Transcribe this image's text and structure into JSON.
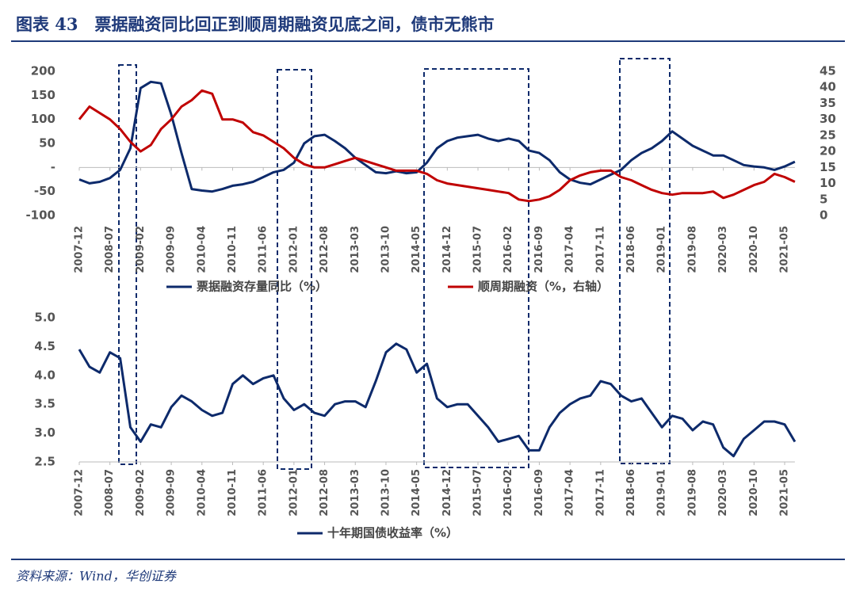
{
  "title": "图表 43　票据融资同比回正到顺周期融资见底之间，债市无熊市",
  "source": "资料来源：Wind，华创证券",
  "chart_data": [
    {
      "type": "line",
      "categories": [
        "2007-12",
        null,
        null,
        "2008-07",
        null,
        null,
        "2009-02",
        null,
        null,
        "2009-09",
        null,
        null,
        "2010-04",
        null,
        null,
        "2010-11",
        null,
        null,
        "2011-06",
        null,
        null,
        "2012-01",
        null,
        null,
        "2012-08",
        null,
        null,
        "2013-03",
        null,
        null,
        "2013-10",
        null,
        null,
        "2014-05",
        null,
        null,
        "2014-12",
        null,
        null,
        "2015-07",
        null,
        null,
        "2016-02",
        null,
        null,
        "2016-09",
        null,
        null,
        "2017-04",
        null,
        null,
        "2017-11",
        null,
        null,
        "2018-06",
        null,
        null,
        "2019-01",
        null,
        null,
        "2019-08",
        null,
        null,
        "2020-03",
        null,
        null,
        "2020-10",
        null,
        null,
        "2021-05",
        null
      ],
      "ylim": [
        -100,
        200
      ],
      "yticks": [
        200,
        150,
        100,
        50,
        {
          "value": 0,
          "label": "-"
        },
        -50,
        -100
      ],
      "y2lim": [
        0,
        45
      ],
      "y2ticks": [
        45,
        40,
        35,
        30,
        25,
        20,
        15,
        10,
        5,
        0
      ],
      "series": [
        {
          "name": "票据融资存量同比（%）",
          "color": "#0d2a6b",
          "values": [
            -25,
            -33,
            -30,
            -22,
            -5,
            40,
            165,
            178,
            175,
            110,
            30,
            -45,
            -48,
            -50,
            -45,
            -38,
            -35,
            -30,
            -20,
            -10,
            -5,
            10,
            50,
            65,
            68,
            55,
            40,
            20,
            5,
            -10,
            -12,
            -8,
            -12,
            -10,
            10,
            40,
            55,
            62,
            65,
            68,
            60,
            55,
            60,
            55,
            35,
            30,
            15,
            -10,
            -25,
            -32,
            -35,
            -25,
            -15,
            -5,
            15,
            30,
            40,
            55,
            75,
            60,
            45,
            35,
            25,
            25,
            15,
            5,
            2,
            0,
            -5,
            2,
            12
          ]
        },
        {
          "name": "顺周期融资（%，右轴）",
          "color": "#c00000",
          "axis": "y2",
          "values": [
            30,
            34,
            32,
            30,
            27,
            23,
            20,
            22,
            27,
            30,
            34,
            36,
            39,
            38,
            30,
            30,
            29,
            26,
            25,
            23,
            21,
            18,
            16,
            15,
            15,
            16,
            17,
            18,
            17,
            16,
            15,
            14,
            14,
            14,
            13,
            11,
            10,
            9.5,
            9,
            8.5,
            8,
            7.5,
            7,
            5,
            4.5,
            5,
            6,
            8,
            11,
            12.5,
            13.5,
            14,
            14,
            12,
            11,
            9.5,
            8,
            7,
            6.5,
            7,
            7,
            7,
            7.5,
            5.5,
            6.5,
            8,
            9.5,
            10.5,
            13,
            12,
            10.5
          ]
        }
      ]
    },
    {
      "type": "line",
      "categories": [
        "2007-12",
        null,
        null,
        "2008-07",
        null,
        null,
        "2009-02",
        null,
        null,
        "2009-09",
        null,
        null,
        "2010-04",
        null,
        null,
        "2010-11",
        null,
        null,
        "2011-06",
        null,
        null,
        "2012-01",
        null,
        null,
        "2012-08",
        null,
        null,
        "2013-03",
        null,
        null,
        "2013-10",
        null,
        null,
        "2014-05",
        null,
        null,
        "2014-12",
        null,
        null,
        "2015-07",
        null,
        null,
        "2016-02",
        null,
        null,
        "2016-09",
        null,
        null,
        "2017-04",
        null,
        null,
        "2017-11",
        null,
        null,
        "2018-06",
        null,
        null,
        "2019-01",
        null,
        null,
        "2019-08",
        null,
        null,
        "2020-03",
        null,
        null,
        "2020-10",
        null,
        null,
        "2021-05",
        null
      ],
      "ylim": [
        2.5,
        5.0
      ],
      "yticks": [
        {
          "value": 5.0,
          "label": "5.0"
        },
        {
          "value": 4.5,
          "label": "4.5"
        },
        {
          "value": 4.0,
          "label": "4.0"
        },
        {
          "value": 3.5,
          "label": "3.5"
        },
        {
          "value": 3.0,
          "label": "3.0"
        },
        {
          "value": 2.5,
          "label": "2.5"
        }
      ],
      "series": [
        {
          "name": "十年期国债收益率（%）",
          "color": "#0d2a6b",
          "values": [
            4.45,
            4.15,
            4.05,
            4.4,
            4.3,
            3.1,
            2.85,
            3.15,
            3.1,
            3.45,
            3.65,
            3.55,
            3.4,
            3.3,
            3.35,
            3.85,
            4.0,
            3.85,
            3.95,
            4.0,
            3.6,
            3.4,
            3.5,
            3.35,
            3.3,
            3.5,
            3.55,
            3.55,
            3.45,
            3.9,
            4.4,
            4.55,
            4.45,
            4.05,
            4.2,
            3.6,
            3.45,
            3.5,
            3.5,
            3.3,
            3.1,
            2.85,
            2.9,
            2.95,
            2.7,
            2.7,
            3.1,
            3.35,
            3.5,
            3.6,
            3.65,
            3.9,
            3.85,
            3.65,
            3.55,
            3.6,
            3.35,
            3.1,
            3.3,
            3.25,
            3.05,
            3.2,
            3.15,
            2.75,
            2.6,
            2.9,
            3.05,
            3.2,
            3.2,
            3.15,
            2.85
          ]
        }
      ]
    }
  ]
}
